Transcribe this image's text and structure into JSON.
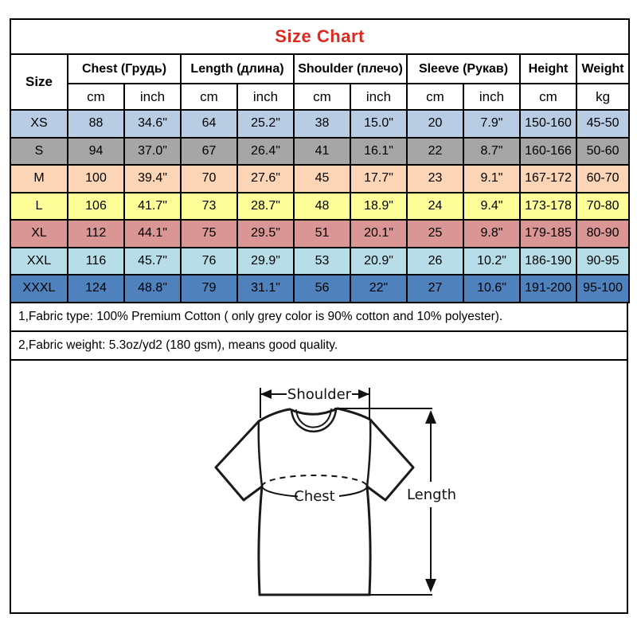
{
  "colors": {
    "title_red": "#d92b21",
    "border_black": "#000000"
  },
  "notes": [
    "1,Fabric type: 100% Premium Cotton ( only grey color is 90% cotton and 10% polyester).",
    "2,Fabric weight: 5.3oz/yd2 (180 gsm), means good quality."
  ],
  "diagram": {
    "shoulder_label": "Shoulder",
    "chest_label": "Chest",
    "length_label": "Length"
  },
  "chart_data": {
    "type": "table",
    "title": "Size Chart",
    "size_column_header": "Size",
    "column_groups": [
      {
        "key": "chest",
        "label": "Chest  (Грудь)",
        "units": [
          "cm",
          "inch"
        ]
      },
      {
        "key": "length",
        "label": "Length (длина)",
        "units": [
          "cm",
          "inch"
        ]
      },
      {
        "key": "shoulder",
        "label": "Shoulder (плечо)",
        "units": [
          "cm",
          "inch"
        ]
      },
      {
        "key": "sleeve",
        "label": "Sleeve (Рукав)",
        "units": [
          "cm",
          "inch"
        ]
      },
      {
        "key": "height",
        "label": "Height",
        "units": [
          "cm"
        ]
      },
      {
        "key": "weight",
        "label": "Weight",
        "units": [
          "kg"
        ]
      }
    ],
    "rows": [
      {
        "size": "XS",
        "bg": "#b8cce4",
        "values": [
          "88",
          "34.6\"",
          "64",
          "25.2\"",
          "38",
          "15.0\"",
          "20",
          "7.9\"",
          "150-160",
          "45-50"
        ]
      },
      {
        "size": "S",
        "bg": "#a6a6a6",
        "values": [
          "94",
          "37.0\"",
          "67",
          "26.4\"",
          "41",
          "16.1\"",
          "22",
          "8.7\"",
          "160-166",
          "50-60"
        ]
      },
      {
        "size": "M",
        "bg": "#fbd5b5",
        "values": [
          "100",
          "39.4\"",
          "70",
          "27.6\"",
          "45",
          "17.7\"",
          "23",
          "9.1\"",
          "167-172",
          "60-70"
        ]
      },
      {
        "size": "L",
        "bg": "#ffff99",
        "values": [
          "106",
          "41.7\"",
          "73",
          "28.7\"",
          "48",
          "18.9\"",
          "24",
          "9.4\"",
          "173-178",
          "70-80"
        ]
      },
      {
        "size": "XL",
        "bg": "#d99694",
        "values": [
          "112",
          "44.1\"",
          "75",
          "29.5\"",
          "51",
          "20.1\"",
          "25",
          "9.8\"",
          "179-185",
          "80-90"
        ]
      },
      {
        "size": "XXL",
        "bg": "#b7dee8",
        "values": [
          "116",
          "45.7\"",
          "76",
          "29.9\"",
          "53",
          "20.9\"",
          "26",
          "10.2\"",
          "186-190",
          "90-95"
        ]
      },
      {
        "size": "XXXL",
        "bg": "#4f81bd",
        "values": [
          "124",
          "48.8\"",
          "79",
          "31.1\"",
          "56",
          "22\"",
          "27",
          "10.6\"",
          "191-200",
          "95-100"
        ]
      }
    ]
  }
}
